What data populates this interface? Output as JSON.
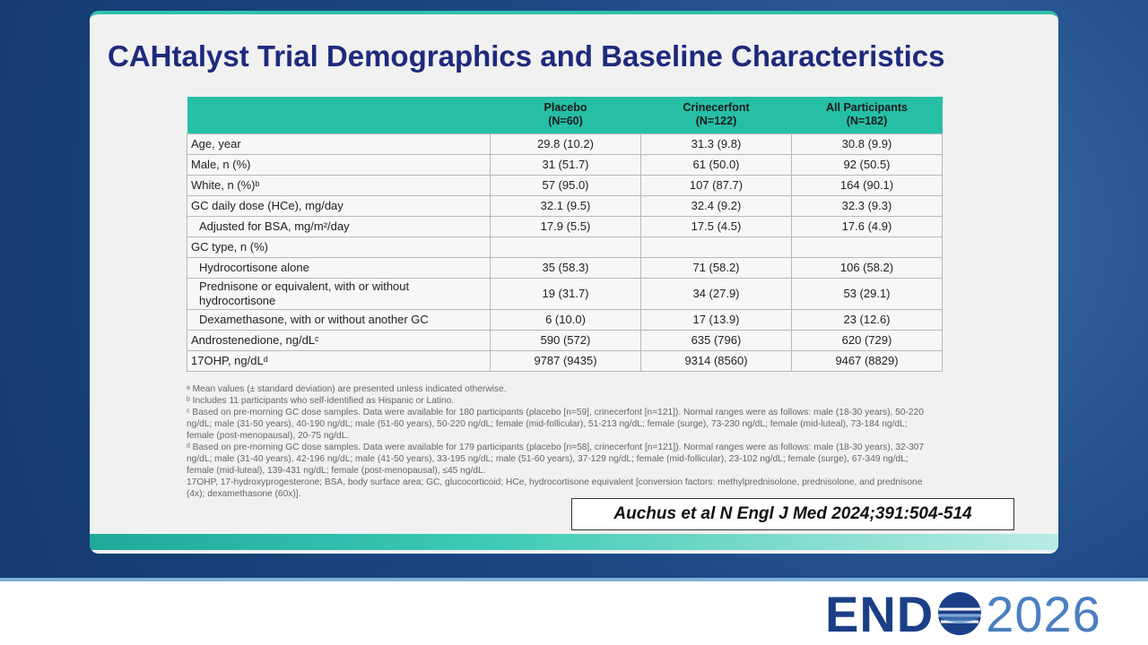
{
  "slide": {
    "title": "CAHtalyst Trial Demographics and Baseline Characteristics",
    "table": {
      "header": [
        [
          "Placebo",
          "(N=60)"
        ],
        [
          "Crinecerfont",
          "(N=122)"
        ],
        [
          "All Participants",
          "(N=182)"
        ]
      ],
      "rows": [
        [
          "Age, year",
          "29.8 (10.2)",
          "31.3 (9.8)",
          "30.8 (9.9)"
        ],
        [
          "Male, n (%)",
          "31 (51.7)",
          "61 (50.0)",
          "92 (50.5)"
        ],
        [
          "White, n (%)ᵇ",
          "57 (95.0)",
          "107 (87.7)",
          "164 (90.1)"
        ],
        [
          "GC daily dose (HCe), mg/day",
          "32.1 (9.5)",
          "32.4 (9.2)",
          "32.3 (9.3)"
        ],
        [
          "Adjusted for BSA, mg/m²/day",
          "17.9 (5.5)",
          "17.5 (4.5)",
          "17.6 (4.9)"
        ],
        [
          "GC type, n (%)"
        ],
        [
          "Hydrocortisone alone",
          "35 (58.3)",
          "71 (58.2)",
          "106 (58.2)"
        ],
        [
          "Prednisone or equivalent, with or without hydrocortisone",
          "19 (31.7)",
          "34 (27.9)",
          "53 (29.1)"
        ],
        [
          "Dexamethasone, with or without another GC",
          "6 (10.0)",
          "17 (13.9)",
          "23 (12.6)"
        ],
        [
          "Androstenedione, ng/dLᶜ",
          "590 (572)",
          "635 (796)",
          "620 (729)"
        ],
        [
          "17OHP, ng/dLᵈ",
          "9787 (9435)",
          "9314 (8560)",
          "9467 (8829)"
        ]
      ]
    },
    "footnotes": [
      "ᵃ Mean values (± standard deviation) are presented unless indicated otherwise.",
      "ᵇ Includes 11 participants who self-identified as Hispanic or Latino.",
      "ᶜ Based on pre-morning GC dose samples. Data were available for 180 participants (placebo [n=59], crinecerfont [n=121]). Normal ranges were as follows: male (18-30 years), 50-220 ng/dL; male (31-50 years), 40-190 ng/dL; male (51-60 years), 50-220 ng/dL; female (mid-follicular), 51-213 ng/dL; female (surge), 73-230 ng/dL; female (mid-luteal), 73-184 ng/dL; female (post-menopausal), 20-75 ng/dL.",
      "ᵈ Based on pre-morning GC dose samples. Data were available for 179 participants (placebo [n=58], crinecerfont [n=121]). Normal ranges were as follows: male (18-30 years), 32-307 ng/dL; male (31-40 years), 42-196 ng/dL; male (41-50 years), 33-195 ng/dL; male (51-60 years), 37-129 ng/dL; female (mid-follicular), 23-102 ng/dL; female (surge), 67-349 ng/dL; female (mid-luteal), 139-431 ng/dL; female (post-menopausal), ≤45 ng/dL.",
      "17OHP, 17-hydroxyprogesterone; BSA, body surface area; GC, glucocorticoid; HCe, hydrocortisone equivalent [conversion factors: methylprednisolone, prednisolone, and prednisone (4x); dexamethasone (60x)]."
    ],
    "citation": "Auchus et al N Engl J Med 2024;391:504-514"
  },
  "logo": {
    "left": "END",
    "right": "2026"
  }
}
